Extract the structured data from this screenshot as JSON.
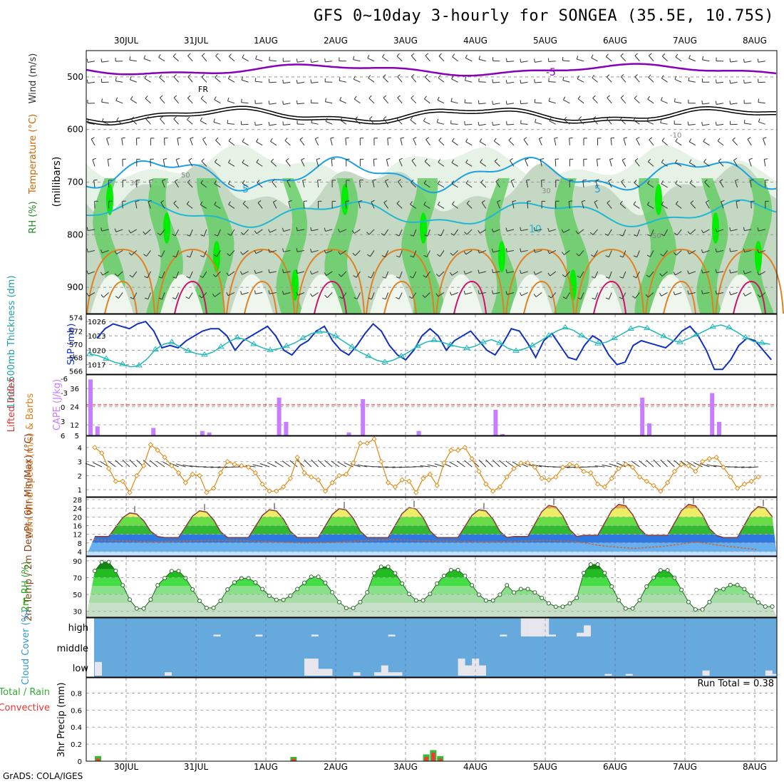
{
  "title": "GFS 0~10day 3-hourly for SONGEA (35.5E, 10.75S)",
  "footer": "GrADS: COLA/IGES",
  "date_labels": [
    "30JUL",
    "31JUL",
    "1AUG",
    "2AUG",
    "3AUG",
    "4AUG",
    "5AUG",
    "6AUG",
    "7AUG",
    "8AUG"
  ],
  "colors": {
    "rh_light": "#e6f2e6",
    "rh_mid": "#c4d8c4",
    "rh_green": "#66cc66",
    "rh_bright": "#00ee00",
    "temp_purple": "#8800bb",
    "temp_black": "#000000",
    "temp_blue": "#1ca0e0",
    "temp_teal": "#20b8d0",
    "temp_orange": "#e08020",
    "temp_red": "#d0106a",
    "barb": "#333333",
    "slp": "#1030c0",
    "thick": "#20b8b8",
    "cape": "#c77dff",
    "lifted_ref": "#ff0000",
    "wind_speed": "#e09020",
    "cloud_bg": "#66aadd",
    "cloud_fill": "#e6e6ec",
    "precip_total": "#33bb33",
    "precip_conv": "#ff3333"
  },
  "chart_data": [
    {
      "type": "heatmap",
      "panel": "cross-section",
      "ylabels_left": [
        "RH (%)",
        "Temperature (°C)",
        "Wind (m/s)"
      ],
      "ylabel_right": "(millibars)",
      "yticks": [
        500,
        600,
        700,
        800,
        900
      ],
      "ylim": [
        450,
        950
      ],
      "contour_labels": [
        "-5",
        "FR",
        "5",
        "10",
        "30",
        "50",
        "-10"
      ]
    },
    {
      "type": "line",
      "panel": "thickness-slp",
      "ylabel_left": "1000-500mb Thickness (dm)",
      "ylabel_right": "SLP (mb)",
      "left_ticks": [
        566,
        568,
        570,
        572,
        574
      ],
      "right_ticks": [
        1017,
        1020,
        1023,
        1026
      ],
      "slp": [
        1022.5,
        1024.5,
        1025.5,
        1025,
        1024.5,
        1025.5,
        1026,
        1024,
        1020.5,
        1021,
        1020.5,
        1022,
        1023,
        1024,
        1024.5,
        1024.5,
        1023,
        1020,
        1022,
        1023,
        1024,
        1025,
        1023,
        1020,
        1019,
        1021,
        1022,
        1024,
        1025,
        1022,
        1020,
        1019,
        1021,
        1023.5,
        1025.5,
        1024,
        1021,
        1019,
        1018,
        1020,
        1023,
        1024.5,
        1023,
        1020,
        1022,
        1023,
        1024,
        1022,
        1020,
        1019,
        1021.5,
        1024.5,
        1024,
        1021.5,
        1018.5,
        1022,
        1023.5,
        1021,
        1018.5,
        1018,
        1021,
        1023,
        1022,
        1019,
        1017,
        1017.5,
        1021,
        1022,
        1021.5,
        1021,
        1020.5,
        1022,
        1024,
        1025,
        1023,
        1020,
        1016,
        1016,
        1018,
        1021,
        1022.5,
        1022,
        1020,
        1018
      ],
      "thickness": [
        568.5,
        568.3,
        567.8,
        567.3,
        567,
        566.6,
        566.8,
        567.8,
        569.2,
        570,
        570.3,
        569.6,
        569,
        568.6,
        568.4,
        568.8,
        569.6,
        570.4,
        571,
        570.7,
        570,
        569.5,
        569.1,
        569.3,
        569.7,
        570.2,
        570.9,
        571.6,
        571.9,
        571.8,
        571.2,
        570.4,
        569.6,
        568.8,
        568.2,
        567.6,
        567.3,
        567.6,
        568.2,
        568.9,
        569.7,
        570.3,
        570.6,
        570.3,
        569.9,
        569.6,
        569.4,
        569.7,
        570.3,
        570.7,
        570.2,
        569.4,
        569,
        569.3,
        569.8,
        570.5,
        571.3,
        572,
        572.5,
        572.1,
        571.3,
        570.6,
        570.1,
        570.3,
        570.9,
        571.6,
        572.3,
        572.7,
        572.4,
        571.8,
        571.2,
        570.6,
        570.3,
        570.8,
        571.4,
        572,
        572.6,
        572.9,
        572.5,
        571.8,
        571,
        570.4,
        570.2,
        570
      ]
    },
    {
      "type": "bar",
      "panel": "cape-lifted",
      "ylabel_left": "Lifted Index",
      "ylabel_right": "CAPE (J/kg)",
      "left_ticks": [
        "-6",
        "-3",
        "0",
        "3",
        "6"
      ],
      "right_ticks": [
        5,
        12,
        24,
        36
      ],
      "cape_x": [
        0,
        1,
        8,
        9,
        16,
        17,
        27,
        28,
        37,
        38,
        39,
        47,
        48,
        58,
        59,
        69,
        70,
        79,
        80,
        81,
        89,
        90
      ],
      "cape_values": [
        42,
        11,
        1,
        10,
        8,
        7,
        30,
        14,
        7,
        2,
        29,
        8,
        3,
        22,
        6,
        3,
        3,
        30,
        13,
        4,
        33,
        14
      ]
    },
    {
      "type": "line",
      "panel": "wind",
      "ylabel": "10m Wind Speed (m/s) & Barbs",
      "yticks": [
        1,
        2,
        3,
        4
      ],
      "ylim": [
        0.5,
        4.8
      ],
      "values": [
        4,
        3.6,
        2.5,
        1.6,
        1.6,
        0.8,
        2,
        2.7,
        4.2,
        3.8,
        3.3,
        2.7,
        2.2,
        1.5,
        2.1,
        2,
        0.8,
        1.1,
        2.2,
        3,
        2.8,
        2.7,
        2.6,
        2.2,
        1.4,
        0.9,
        0.9,
        1.2,
        1.8,
        3.3,
        2.2,
        1.9,
        1.7,
        0.9,
        1.5,
        2,
        2.1,
        2.9,
        4.3,
        4.3,
        4.6,
        3,
        1.5,
        1.2,
        1.7,
        1.6,
        0.8,
        1.8,
        2.1,
        1.3,
        2.9,
        3.8,
        3.8,
        4,
        3.2,
        2.3,
        1.4,
        0.9,
        1.2,
        1.9,
        2.5,
        2.9,
        2.9,
        2.6,
        1.8,
        1.7,
        1.9,
        2.6,
        2.8,
        2.7,
        2.3,
        2.2,
        1.4,
        1.2,
        1.8,
        2.5,
        2.8,
        2.6,
        1.9,
        1.6,
        1.3,
        0.9,
        1.5,
        2.3,
        2.8,
        2.7,
        2.3,
        3,
        3.2,
        3.3,
        2.6,
        1.9,
        1.1,
        1.4,
        1.6,
        1.9
      ]
    },
    {
      "type": "area",
      "panel": "temperature",
      "ylabel": "2m Temp / 2m DewPt (6hr Min/Max) (°C)",
      "yticks": [
        4,
        8,
        12,
        16,
        20,
        24,
        28
      ],
      "ylim": [
        2,
        29
      ],
      "daily_max": [
        22,
        23,
        23.5,
        24,
        24.5,
        23.5,
        25.5,
        26,
        26,
        25
      ],
      "daily_min": [
        11,
        10.5,
        10.5,
        10.5,
        10.5,
        10.5,
        11,
        11.5,
        11.5,
        10.5
      ],
      "dewpoint": [
        9.5,
        9,
        8.5,
        8.8,
        9.2,
        9,
        8.5,
        8,
        8.2,
        9,
        9.5,
        9,
        8.8,
        8.5,
        8.7,
        9.2,
        8.7,
        6.5,
        5.5,
        6.5,
        8.5,
        6.5,
        5
      ]
    },
    {
      "type": "area",
      "panel": "rh2m",
      "ylabel": "2m RH (%)",
      "yticks": [
        30,
        50,
        70,
        90
      ],
      "ylim": [
        23,
        95
      ],
      "daily_max": [
        90,
        79,
        70,
        72,
        84,
        80,
        57,
        87,
        80,
        62
      ],
      "daily_min": [
        32,
        33,
        43,
        33,
        42,
        42,
        35,
        32,
        31,
        35
      ]
    },
    {
      "type": "bar",
      "panel": "cloud-cover",
      "ylabel": "Cloud Cover (%)",
      "levels": [
        "high",
        "middle",
        "low"
      ],
      "high_x": [
        17,
        23,
        31,
        42,
        58,
        61,
        62,
        63,
        64,
        65,
        69,
        70
      ],
      "high_values": [
        10,
        10,
        10,
        10,
        10,
        100,
        100,
        100,
        100,
        10,
        20,
        60
      ],
      "low_x": [
        0,
        10,
        30,
        31,
        32,
        33,
        37,
        40,
        41,
        42,
        43,
        52,
        53,
        54,
        55,
        73,
        76,
        87,
        96,
        97
      ],
      "low_values": [
        80,
        20,
        100,
        100,
        40,
        40,
        20,
        20,
        60,
        20,
        20,
        100,
        60,
        100,
        60,
        10,
        10,
        30,
        30,
        10
      ]
    },
    {
      "type": "bar",
      "panel": "precip",
      "ylabel": "3hr Precip (mm)",
      "legend_total": "Total / Rain",
      "legend_conv": "Convective",
      "run_total": "Run Total = 0.38",
      "yticks": [
        0,
        0.2,
        0.4,
        0.6,
        0.8
      ],
      "ylim": [
        0,
        0.98
      ],
      "x": [
        0,
        28,
        47,
        48,
        49
      ],
      "total": [
        0.06,
        0.05,
        0.08,
        0.13,
        0.06
      ],
      "conv": [
        0.03,
        0.03,
        0.05,
        0.1,
        0.03
      ]
    }
  ]
}
